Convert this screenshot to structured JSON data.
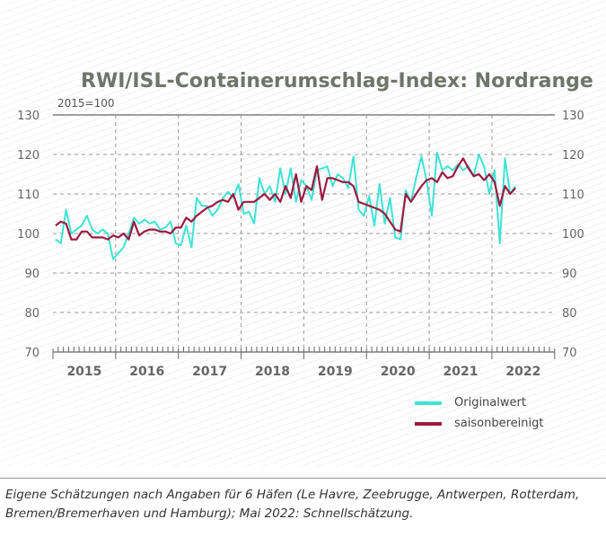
{
  "chart_data": {
    "type": "line",
    "title": "RWI/ISL-Containerumschlag-Index: Nordrange",
    "subtitle": "2015=100",
    "ylim": [
      70,
      130
    ],
    "yticks": [
      70,
      80,
      90,
      100,
      110,
      120,
      130
    ],
    "xticks": [
      "2015",
      "2016",
      "2017",
      "2018",
      "2019",
      "2020",
      "2021",
      "2022"
    ],
    "x_start": "2015-01",
    "x_end": "2022-05",
    "grid": true,
    "legend": "bottom-right",
    "series": [
      {
        "name": "Originalwert",
        "color": "#3fe3d5",
        "values": [
          98.5,
          97.5,
          106,
          100,
          101,
          102,
          104.5,
          101,
          100,
          101,
          100,
          93.5,
          95,
          96.5,
          100,
          104,
          102.5,
          103.5,
          102.5,
          103,
          101,
          101.5,
          103,
          97.5,
          97,
          102,
          96.5,
          109,
          107,
          107,
          104.5,
          106,
          109,
          110.5,
          109,
          112.5,
          105,
          105.5,
          102.5,
          114,
          110,
          112,
          108,
          116.5,
          110,
          116.5,
          108,
          113.5,
          112,
          108.5,
          116,
          116.5,
          117,
          112,
          115,
          114,
          111.5,
          119.5,
          106,
          104.5,
          109.5,
          102,
          112.5,
          102.5,
          109,
          99,
          98.5,
          111,
          108,
          114,
          119.5,
          113.5,
          104.5,
          120.5,
          116,
          117,
          116,
          117.5,
          116,
          117,
          114.5,
          120,
          117,
          110,
          116,
          97.5,
          119,
          110,
          112
        ]
      },
      {
        "name": "saisonbereinigt",
        "color": "#9b1b40",
        "values": [
          102,
          103,
          102.5,
          98.5,
          98.5,
          100.5,
          100.5,
          99,
          99,
          99,
          98.5,
          99.5,
          99,
          100,
          98.5,
          103,
          99.5,
          100.5,
          101,
          101,
          100.5,
          100.5,
          100,
          101.5,
          101.5,
          104,
          103,
          104.5,
          105.5,
          106.5,
          107,
          108,
          108.5,
          108,
          110,
          106,
          108,
          108,
          108,
          109,
          110,
          108.5,
          110,
          108,
          112,
          109,
          115,
          108,
          112,
          111,
          117,
          108.5,
          114,
          114,
          113.5,
          113,
          113,
          112,
          108,
          107.5,
          107,
          106.5,
          106,
          105,
          103,
          101,
          100.5,
          110,
          108,
          110,
          112,
          113.5,
          114,
          113,
          115.5,
          114,
          114.5,
          117,
          119,
          116.5,
          114.5,
          115,
          113.5,
          115,
          113,
          107,
          112,
          110,
          111.5
        ]
      }
    ]
  },
  "caption": "Eigene Schätzungen nach Angaben für 6 Häfen (Le Havre, Zeebrugge, Antwerpen, Rotterdam, Bremen/Bremerhaven und Hamburg); Mai 2022: Schnellschätzung."
}
